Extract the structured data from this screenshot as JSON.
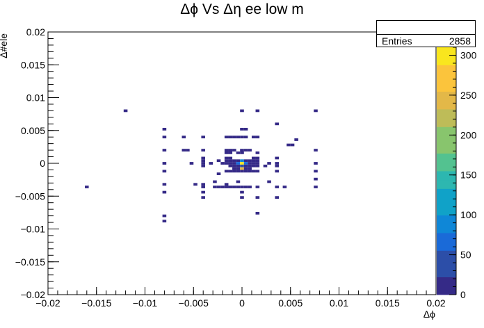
{
  "title": "Δϕ Vs Δη ee low m",
  "stats": {
    "name": "",
    "entries_label": "Entries",
    "entries_value": "2858"
  },
  "colors": {
    "palette": [
      "#352a87",
      "#2c4ea8",
      "#1a6ad8",
      "#0f87d7",
      "#10a2c8",
      "#2db7b0",
      "#53c290",
      "#88c56d",
      "#bebc58",
      "#e3b848",
      "#fbc43c",
      "#f9e61e"
    ]
  },
  "chart_data": {
    "type": "heatmap",
    "title": "Δϕ Vs Δη ee low m",
    "xlabel": "Δϕ",
    "ylabel": "Δ#ele",
    "xlim": [
      -0.02,
      0.02
    ],
    "ylim": [
      -0.02,
      0.02
    ],
    "zlim": [
      0,
      310
    ],
    "x_ticks": [
      "−0.02",
      "−0.015",
      "−0.01",
      "−0.005",
      "0",
      "0.005",
      "0.01",
      "0.015",
      "0.02"
    ],
    "y_ticks": [
      "−0.02",
      "−0.015",
      "−0.01",
      "−0.005",
      "0",
      "0.005",
      "0.01",
      "0.015",
      "0.02"
    ],
    "z_ticks": [
      "0",
      "50",
      "100",
      "150",
      "200",
      "250",
      "300"
    ],
    "bin_width": 0.0004,
    "bins": [
      [
        -0.012,
        0.008,
        1
      ],
      [
        -0.016,
        -0.0036,
        1
      ],
      [
        -0.008,
        0.0052,
        1
      ],
      [
        -0.008,
        0.004,
        1
      ],
      [
        -0.008,
        0.002,
        1
      ],
      [
        -0.008,
        0,
        1
      ],
      [
        -0.008,
        -0.0012,
        1
      ],
      [
        -0.008,
        -0.0032,
        1
      ],
      [
        -0.008,
        -0.0044,
        1
      ],
      [
        -0.008,
        -0.008,
        1
      ],
      [
        -0.008,
        -0.0088,
        1
      ],
      [
        -0.006,
        0.004,
        1
      ],
      [
        -0.006,
        0.002,
        1
      ],
      [
        -0.0056,
        0.002,
        1
      ],
      [
        -0.0052,
        0,
        1
      ],
      [
        -0.0048,
        -0.0032,
        1
      ],
      [
        -0.004,
        0.004,
        1
      ],
      [
        -0.004,
        0.002,
        1
      ],
      [
        -0.004,
        0.0008,
        1
      ],
      [
        -0.004,
        0.0004,
        1
      ],
      [
        -0.004,
        0,
        1
      ],
      [
        -0.004,
        -0.0004,
        1
      ],
      [
        -0.004,
        -0.0032,
        1
      ],
      [
        -0.004,
        -0.0036,
        1
      ],
      [
        -0.004,
        -0.0044,
        1
      ],
      [
        -0.004,
        -0.0052,
        1
      ],
      [
        -0.0032,
        0,
        1
      ],
      [
        -0.0028,
        -0.0028,
        1
      ],
      [
        -0.0028,
        -0.0036,
        1
      ],
      [
        -0.0024,
        0.0004,
        1
      ],
      [
        -0.0024,
        -0.0016,
        1
      ],
      [
        -0.0024,
        -0.0036,
        1
      ],
      [
        -0.002,
        0,
        1
      ],
      [
        -0.002,
        -0.0036,
        1
      ],
      [
        -0.0016,
        0.004,
        1
      ],
      [
        -0.0016,
        0.002,
        1
      ],
      [
        -0.0016,
        0.0016,
        1
      ],
      [
        -0.0016,
        0.0008,
        1
      ],
      [
        -0.0016,
        0.0004,
        1
      ],
      [
        -0.0016,
        0,
        1
      ],
      [
        -0.0016,
        -0.0012,
        1
      ],
      [
        -0.0016,
        -0.0032,
        1
      ],
      [
        -0.0016,
        -0.0036,
        1
      ],
      [
        -0.0012,
        0.004,
        1
      ],
      [
        -0.0012,
        0.002,
        1
      ],
      [
        -0.0012,
        0.0016,
        1
      ],
      [
        -0.0012,
        0.0008,
        1
      ],
      [
        -0.0012,
        0.0004,
        5
      ],
      [
        -0.0012,
        0,
        10
      ],
      [
        -0.0012,
        -0.0004,
        3
      ],
      [
        -0.0012,
        -0.0012,
        1
      ],
      [
        -0.0012,
        -0.0036,
        1
      ],
      [
        -0.0008,
        0.004,
        1
      ],
      [
        -0.0008,
        0.002,
        1
      ],
      [
        -0.0008,
        0.0004,
        8
      ],
      [
        -0.0008,
        0,
        20
      ],
      [
        -0.0008,
        -0.0004,
        8
      ],
      [
        -0.0008,
        -0.0008,
        2
      ],
      [
        -0.0008,
        -0.0012,
        1
      ],
      [
        -0.0008,
        -0.0036,
        1
      ],
      [
        -0.0004,
        0.004,
        1
      ],
      [
        -0.0004,
        0.0016,
        1
      ],
      [
        -0.0004,
        0.0004,
        12
      ],
      [
        -0.0004,
        0,
        60
      ],
      [
        -0.0004,
        -0.0004,
        10
      ],
      [
        -0.0004,
        -0.0008,
        3
      ],
      [
        -0.0004,
        -0.0012,
        1
      ],
      [
        -0.0004,
        -0.0028,
        1
      ],
      [
        -0.0004,
        -0.0036,
        1
      ],
      [
        0,
        0.008,
        1
      ],
      [
        0,
        0.0052,
        1
      ],
      [
        0,
        0.004,
        1
      ],
      [
        0,
        0.002,
        1
      ],
      [
        0,
        0.0016,
        1
      ],
      [
        0,
        0.0004,
        90
      ],
      [
        0,
        0,
        310
      ],
      [
        0,
        -0.0004,
        40
      ],
      [
        0,
        -0.0008,
        240
      ],
      [
        0,
        -0.0012,
        5
      ],
      [
        0,
        -0.0036,
        1
      ],
      [
        0,
        -0.0044,
        1
      ],
      [
        0,
        -0.0052,
        1
      ],
      [
        0.0004,
        0.0052,
        1
      ],
      [
        0.0004,
        0.004,
        1
      ],
      [
        0.0004,
        0.002,
        1
      ],
      [
        0.0004,
        0.0004,
        12
      ],
      [
        0.0004,
        0,
        70
      ],
      [
        0.0004,
        -0.0004,
        10
      ],
      [
        0.0004,
        -0.0008,
        3
      ],
      [
        0.0004,
        -0.0012,
        1
      ],
      [
        0.0004,
        -0.0036,
        1
      ],
      [
        0.0008,
        0.002,
        1
      ],
      [
        0.0008,
        0.0004,
        6
      ],
      [
        0.0008,
        0,
        20
      ],
      [
        0.0008,
        -0.0004,
        6
      ],
      [
        0.0008,
        -0.0008,
        2
      ],
      [
        0.0008,
        -0.0012,
        1
      ],
      [
        0.0008,
        -0.0036,
        1
      ],
      [
        0.0012,
        0.004,
        1
      ],
      [
        0.0012,
        0.0008,
        1
      ],
      [
        0.0012,
        0.0004,
        4
      ],
      [
        0.0012,
        0,
        8
      ],
      [
        0.0012,
        -0.0004,
        3
      ],
      [
        0.0012,
        -0.0012,
        1
      ],
      [
        0.0016,
        0.008,
        1
      ],
      [
        0.0016,
        0.004,
        1
      ],
      [
        0.0016,
        0.0016,
        1
      ],
      [
        0.0016,
        0.0008,
        1
      ],
      [
        0.0016,
        0.0004,
        1
      ],
      [
        0.0016,
        0,
        2
      ],
      [
        0.0016,
        -0.0004,
        1
      ],
      [
        0.0016,
        -0.0012,
        1
      ],
      [
        0.0016,
        -0.0036,
        1
      ],
      [
        0.0016,
        -0.0052,
        1
      ],
      [
        0.0016,
        -0.0076,
        1
      ],
      [
        0.0024,
        -0.0004,
        1
      ],
      [
        0.0028,
        0,
        1
      ],
      [
        0.0028,
        -0.0028,
        1
      ],
      [
        0.0036,
        0.006,
        1
      ],
      [
        0.0036,
        0.0008,
        1
      ],
      [
        0.0036,
        0,
        1
      ],
      [
        0.0036,
        -0.0004,
        1
      ],
      [
        0.0036,
        -0.0012,
        1
      ],
      [
        0.0036,
        -0.0036,
        1
      ],
      [
        0.0036,
        -0.0052,
        1
      ],
      [
        0.0044,
        -0.0036,
        1
      ],
      [
        0.0048,
        0.0028,
        1
      ],
      [
        0.0056,
        0.0036,
        1
      ],
      [
        0.0052,
        0.0028,
        1
      ],
      [
        0.0076,
        0.008,
        1
      ],
      [
        0.0076,
        0.002,
        1
      ],
      [
        0.0076,
        0,
        1
      ],
      [
        0.0076,
        -0.0012,
        1
      ],
      [
        0.0076,
        -0.0024,
        1
      ],
      [
        0.0076,
        -0.0036,
        1
      ]
    ]
  }
}
